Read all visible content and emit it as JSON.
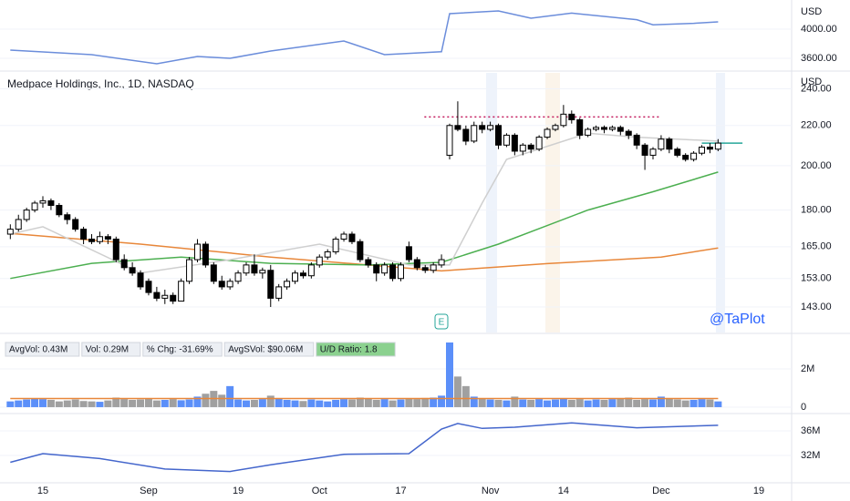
{
  "chart_data": [
    {
      "type": "line",
      "unit_label": "USD",
      "ylim": [
        3437.5,
        4400
      ],
      "yticks": [
        {
          "value": 4000,
          "label": "4000.00"
        },
        {
          "value": 3600,
          "label": "3600.00"
        }
      ],
      "series": [
        {
          "color": "#6b8ddb",
          "x": [
            0,
            10,
            18,
            23,
            27,
            32,
            41,
            46,
            53,
            54,
            60,
            64,
            69,
            77,
            79,
            84,
            87
          ],
          "values": [
            3712,
            3650,
            3525,
            3625,
            3600,
            3700,
            3837,
            3650,
            3690,
            4212,
            4250,
            4150,
            4220,
            4130,
            4060,
            4080,
            4100
          ]
        }
      ]
    },
    {
      "type": "candlestick",
      "title": "Medpace Holdings, Inc., 1D, NASDAQ",
      "unit_label": "USD",
      "watermark": "@TaPlot",
      "earnings_label": "E",
      "log": true,
      "ylim": [
        134.6,
        246.6
      ],
      "yticks": [
        {
          "value": 143,
          "label": "143.00"
        },
        {
          "value": 153,
          "label": "153.00"
        },
        {
          "value": 165,
          "label": "165.00"
        },
        {
          "value": 180,
          "label": "180.00"
        },
        {
          "value": 200,
          "label": "200.00"
        },
        {
          "value": 220,
          "label": "220.00"
        },
        {
          "value": 240,
          "label": "240.00"
        }
      ],
      "up_color": "#ffffff",
      "down_color": "#000000",
      "categories": [
        null,
        null,
        null,
        null,
        "15",
        null,
        null,
        null,
        null,
        null,
        null,
        null,
        null,
        null,
        null,
        null,
        null,
        "Sep",
        null,
        null,
        null,
        null,
        null,
        null,
        null,
        null,
        null,
        null,
        "19",
        null,
        null,
        null,
        null,
        null,
        null,
        null,
        null,
        null,
        "Oct",
        null,
        null,
        null,
        null,
        null,
        null,
        null,
        null,
        null,
        "17",
        null,
        null,
        null,
        null,
        null,
        null,
        null,
        null,
        null,
        null,
        "Nov",
        null,
        null,
        null,
        null,
        null,
        null,
        null,
        null,
        "14",
        null,
        null,
        null,
        null,
        null,
        null,
        null,
        null,
        null,
        null,
        null,
        "Dec",
        null,
        null,
        null,
        null,
        null,
        null,
        null,
        null,
        null,
        null,
        null,
        "19"
      ],
      "open": [
        170,
        172,
        176,
        180,
        183,
        184,
        182,
        178,
        176,
        172,
        168,
        167,
        169,
        168,
        160,
        157,
        155,
        152,
        148,
        146,
        147,
        145,
        152,
        160,
        166,
        158,
        152,
        150,
        152,
        155,
        158,
        155,
        156,
        146,
        150,
        152,
        155,
        154,
        158,
        161,
        163,
        168,
        170,
        167,
        160,
        158,
        155,
        158,
        153,
        165,
        160,
        157,
        156,
        158,
        205,
        220,
        218,
        212,
        220,
        218,
        220,
        210,
        215,
        207,
        210,
        208,
        214,
        218,
        220,
        226,
        223,
        215,
        218,
        219,
        218,
        219,
        217,
        215,
        210,
        205,
        208,
        213,
        208,
        205,
        203,
        206,
        209,
        208,
        null,
        null,
        null,
        null,
        null
      ],
      "high": [
        174,
        178,
        181,
        184,
        186,
        185,
        183,
        179,
        177,
        173,
        170,
        171,
        170,
        169,
        162,
        159,
        156,
        153,
        150,
        149,
        148,
        153,
        161,
        168,
        167,
        159,
        154,
        153,
        156,
        159,
        162,
        157,
        158,
        151,
        153,
        156,
        156,
        159,
        162,
        164,
        169,
        171,
        171,
        168,
        161,
        159,
        159,
        159,
        159,
        167,
        161,
        158,
        159,
        162,
        221,
        233,
        220,
        222,
        222,
        222,
        221,
        216,
        216,
        211,
        211,
        215,
        219,
        221,
        231,
        228,
        224,
        219,
        220,
        220,
        220,
        220,
        218,
        216,
        211,
        209,
        215,
        214,
        209,
        206,
        207,
        210,
        211,
        213,
        null,
        null,
        null,
        null,
        null
      ],
      "low": [
        168,
        171,
        175,
        179,
        181,
        180,
        177,
        174,
        171,
        166,
        166,
        166,
        166,
        159,
        156,
        154,
        149,
        147,
        145,
        144,
        144,
        145,
        151,
        159,
        157,
        151,
        149,
        149,
        151,
        154,
        154,
        153,
        143,
        145,
        149,
        151,
        153,
        153,
        157,
        160,
        162,
        167,
        166,
        159,
        157,
        152,
        154,
        152,
        152,
        159,
        156,
        155,
        155,
        157,
        203,
        217,
        210,
        211,
        216,
        217,
        208,
        209,
        205,
        205,
        206,
        207,
        213,
        217,
        219,
        221,
        213,
        214,
        217,
        216,
        217,
        215,
        213,
        208,
        198,
        203,
        207,
        206,
        204,
        202,
        202,
        205,
        206,
        207,
        null,
        null,
        null,
        null,
        null
      ],
      "close": [
        172,
        176,
        180,
        183,
        184,
        182,
        178,
        176,
        172,
        168,
        167,
        169,
        168,
        160,
        157,
        155,
        150,
        148,
        146,
        147,
        145,
        152,
        160,
        166,
        158,
        152,
        150,
        152,
        155,
        158,
        155,
        156,
        146,
        150,
        152,
        155,
        154,
        158,
        161,
        163,
        168,
        170,
        167,
        160,
        158,
        155,
        158,
        153,
        158,
        160,
        157,
        156,
        158,
        160,
        220,
        218,
        212,
        220,
        218,
        220,
        210,
        215,
        207,
        210,
        208,
        214,
        218,
        220,
        226,
        223,
        215,
        218,
        219,
        218,
        219,
        217,
        215,
        210,
        205,
        208,
        213,
        208,
        205,
        203,
        206,
        209,
        208,
        211,
        null,
        null,
        null,
        null,
        null
      ],
      "series": [
        {
          "color": "#e8873a",
          "x": [
            0,
            16,
            32,
            44,
            53,
            66,
            80,
            87
          ],
          "values": [
            170.3,
            166,
            161,
            158,
            155.8,
            158.5,
            161,
            164.5
          ]
        },
        {
          "color": "#4caf50",
          "x": [
            0,
            10,
            21,
            32,
            44,
            53,
            60,
            71,
            79,
            87
          ],
          "values": [
            153,
            158.6,
            161,
            158.6,
            158,
            159,
            166,
            180,
            188,
            197
          ]
        },
        {
          "color": "#cfcfcf",
          "x": [
            0,
            4,
            16,
            27,
            38,
            49,
            54,
            58,
            61,
            71,
            77,
            87
          ],
          "values": [
            170,
            173,
            155,
            160,
            166,
            158,
            158,
            183,
            203,
            216,
            214,
            212
          ]
        }
      ],
      "levels": [
        {
          "value": 224.5,
          "x": [
            50.9,
            80
          ],
          "color": "#c2185b"
        },
        {
          "value": 211,
          "x": [
            85,
            90
          ],
          "color": "#26a69a"
        }
      ]
    },
    {
      "type": "bar",
      "ylim": [
        -240000,
        3760000
      ],
      "yticks": [
        0,
        {
          "value": 2000000,
          "label": "2M"
        }
      ],
      "up_color": "#5b8ff9",
      "down_color": "#a0a0a0",
      "badges": [
        "AvgVol: 0.43M",
        "Vol: 0.29M",
        "% Chg: -31.69%",
        "AvgSVol: $90.06M",
        "U/D Ratio: 1.8"
      ],
      "values": [
        300000,
        350000,
        400000,
        450000,
        420000,
        380000,
        300000,
        350000,
        400000,
        320000,
        300000,
        280000,
        350000,
        500000,
        420000,
        380000,
        400000,
        450000,
        350000,
        380000,
        420000,
        360000,
        400000,
        550000,
        700000,
        850000,
        650000,
        1100000,
        400000,
        350000,
        380000,
        420000,
        600000,
        450000,
        380000,
        350000,
        320000,
        400000,
        350000,
        300000,
        380000,
        420000,
        400000,
        500000,
        450000,
        380000,
        420000,
        350000,
        400000,
        450000,
        420000,
        480000,
        500000,
        600000,
        3380000,
        1600000,
        1100000,
        550000,
        450000,
        400000,
        380000,
        350000,
        550000,
        400000,
        380000,
        420000,
        350000,
        400000,
        450000,
        380000,
        420000,
        350000,
        400000,
        380000,
        420000,
        450000,
        500000,
        380000,
        420000,
        400000,
        550000,
        450000,
        400000,
        350000,
        380000,
        420000,
        400000,
        300000,
        null,
        null,
        null,
        null,
        null
      ],
      "series": [
        {
          "color": "#e8873a",
          "x": [
            0,
            87
          ],
          "values": [
            450000,
            450000
          ]
        }
      ]
    },
    {
      "type": "line",
      "ylim": [
        27560000,
        38670000
      ],
      "yticks": [
        {
          "value": 36000000,
          "label": "36M"
        },
        {
          "value": 32000000,
          "label": "32M"
        }
      ],
      "series": [
        {
          "color": "#4466cc",
          "x": [
            0,
            4,
            11,
            19,
            27,
            32,
            41,
            49,
            53,
            55,
            58,
            62,
            69,
            77,
            87
          ],
          "values": [
            30900000,
            32300000,
            31500000,
            29800000,
            29400000,
            30500000,
            32200000,
            32300000,
            36300000,
            37200000,
            36400000,
            36600000,
            37300000,
            36500000,
            36900000
          ]
        }
      ]
    }
  ]
}
